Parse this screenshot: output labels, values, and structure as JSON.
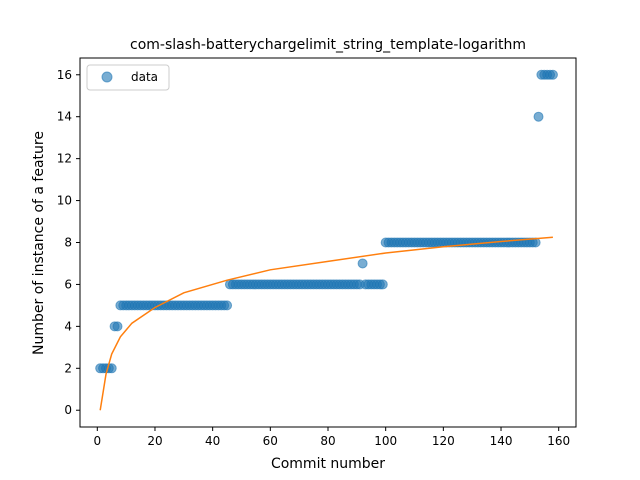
{
  "chart_data": {
    "type": "scatter",
    "title": "com-slash-batterychargelimit_string_template-logarithm",
    "xlabel": "Commit number",
    "ylabel": "Number of instance of a feature",
    "xlim": [
      -6,
      166
    ],
    "ylim": [
      -0.8,
      16.8
    ],
    "xticks": [
      0,
      20,
      40,
      60,
      80,
      100,
      120,
      140,
      160
    ],
    "yticks": [
      0,
      2,
      4,
      6,
      8,
      10,
      12,
      14,
      16
    ],
    "legend": {
      "position": "top-left",
      "entries": [
        "data"
      ]
    },
    "grid": false,
    "colors": {
      "data": "#1f77b4",
      "fit": "#ff7f0e"
    },
    "series": [
      {
        "name": "data",
        "kind": "scatter",
        "segments": [
          {
            "x_from": 1,
            "x_to": 5,
            "y": 2
          },
          {
            "x_from": 6,
            "x_to": 7,
            "y": 4
          },
          {
            "x_from": 8,
            "x_to": 45,
            "y": 5
          },
          {
            "x_from": 46,
            "x_to": 91,
            "y": 6
          },
          {
            "x_from": 92,
            "x_to": 92,
            "y": 7
          },
          {
            "x_from": 93,
            "x_to": 99,
            "y": 6
          },
          {
            "x_from": 100,
            "x_to": 152,
            "y": 8
          },
          {
            "x_from": 153,
            "x_to": 153,
            "y": 14
          },
          {
            "x_from": 154,
            "x_to": 158,
            "y": 16
          }
        ]
      },
      {
        "kind": "line",
        "x": [
          1,
          2,
          3,
          5,
          8,
          12,
          20,
          30,
          45,
          60,
          80,
          100,
          120,
          140,
          158
        ],
        "y": [
          0.0,
          0.86,
          1.72,
          2.68,
          3.5,
          4.15,
          4.9,
          5.6,
          6.2,
          6.7,
          7.1,
          7.5,
          7.8,
          8.05,
          8.25
        ]
      }
    ]
  }
}
